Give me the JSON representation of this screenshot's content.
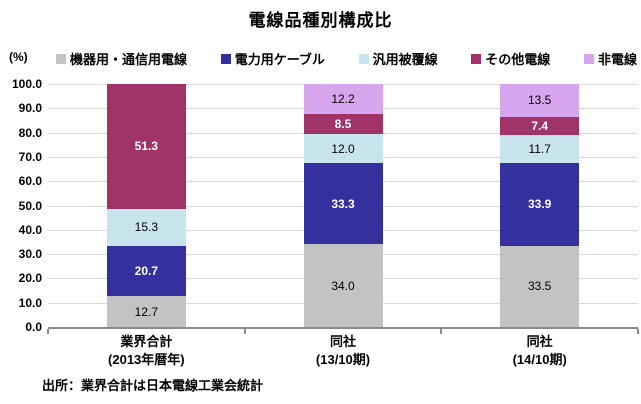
{
  "title": "電線品種別構成比",
  "y_axis_unit": "(%)",
  "source_note": "出所：業界合計は日本電線工業会統計",
  "colors": {
    "gridline": "#d9d9d9",
    "axis": "#8a8a8a",
    "background": "#ffffff"
  },
  "chart_data": {
    "type": "bar",
    "stacked": true,
    "title": "電線品種別構成比",
    "ylabel": "(%)",
    "ylim": [
      0,
      100
    ],
    "ytick_step": 10,
    "ytick_decimals": 1,
    "grid": true,
    "legend_position": "top",
    "categories": [
      {
        "line1": "業界合計",
        "line2": "(2013年暦年)"
      },
      {
        "line1": "同社",
        "line2": "(13/10期)"
      },
      {
        "line1": "同社",
        "line2": "(14/10期)"
      }
    ],
    "series": [
      {
        "name": "機器用・通信用電線",
        "color": "#c3c3c3",
        "label_color": "#000000",
        "label_bold": false,
        "values": [
          12.7,
          34.0,
          33.5
        ]
      },
      {
        "name": "電力用ケーブル",
        "color": "#34309e",
        "label_color": "#ffffff",
        "label_bold": true,
        "values": [
          20.7,
          33.3,
          33.9
        ]
      },
      {
        "name": "汎用被覆線",
        "color": "#c8e4ec",
        "label_color": "#000000",
        "label_bold": false,
        "values": [
          15.3,
          12.0,
          11.7
        ]
      },
      {
        "name": "その他電線",
        "color": "#a03468",
        "label_color": "#ffffff",
        "label_bold": true,
        "values": [
          51.3,
          8.5,
          7.4
        ]
      },
      {
        "name": "非電線",
        "color": "#d8a6ef",
        "label_color": "#000000",
        "label_bold": false,
        "values": [
          0,
          12.2,
          13.5
        ]
      }
    ]
  }
}
